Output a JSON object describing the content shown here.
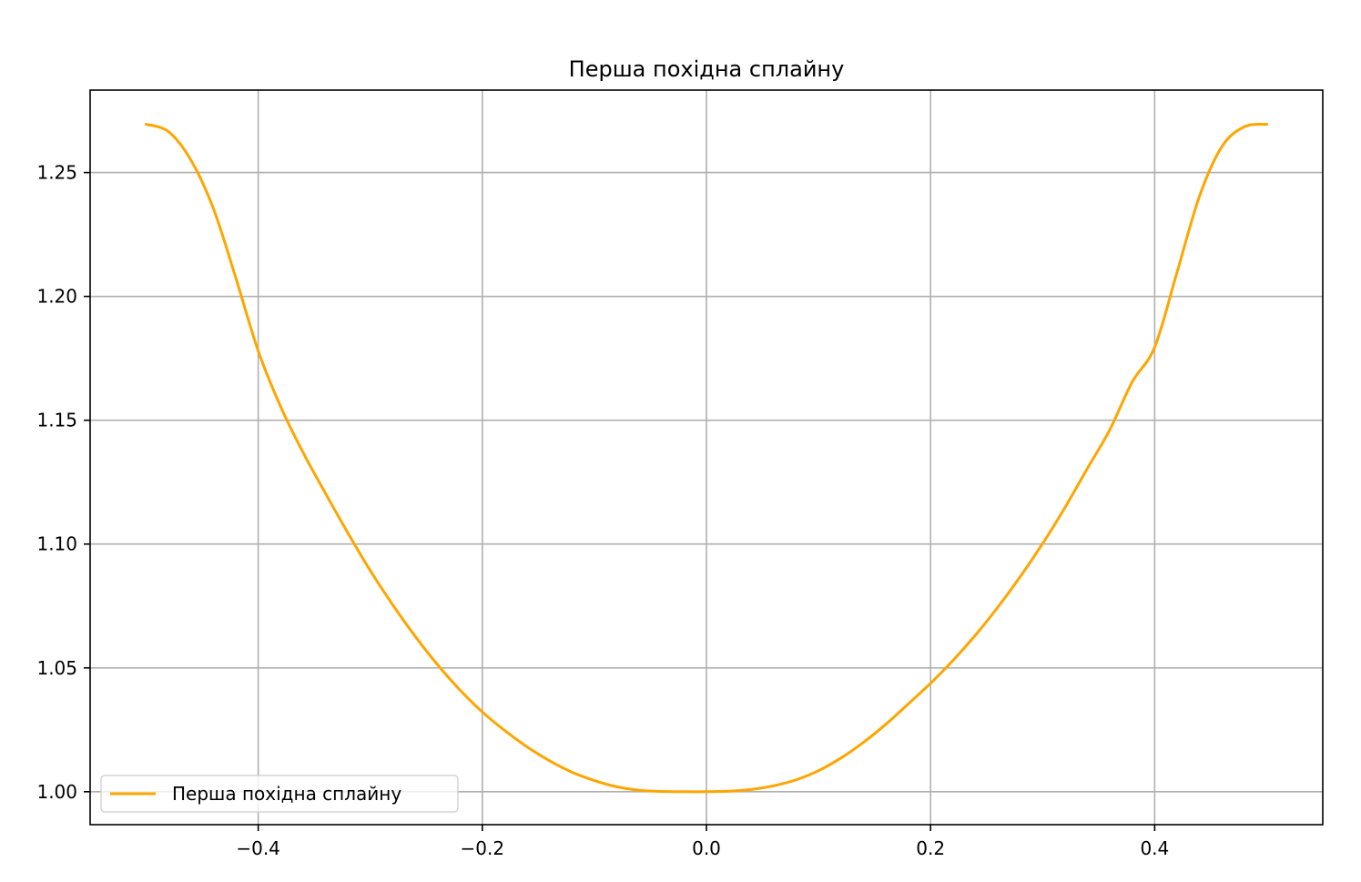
{
  "chart_data": {
    "type": "line",
    "title": "Перша похідна сплайну",
    "xlabel": "",
    "ylabel": "",
    "xlim": [
      -0.55,
      0.55
    ],
    "ylim": [
      0.9867,
      1.2833
    ],
    "x_ticks": [
      -0.4,
      -0.2,
      0.0,
      0.2,
      0.4
    ],
    "x_tick_labels": [
      "−0.4",
      "−0.2",
      "0.0",
      "0.2",
      "0.4"
    ],
    "y_ticks": [
      1.0,
      1.05,
      1.1,
      1.15,
      1.2,
      1.25
    ],
    "y_tick_labels": [
      "1.00",
      "1.05",
      "1.10",
      "1.15",
      "1.20",
      "1.25"
    ],
    "grid": true,
    "legend_position": "lower-left",
    "series": [
      {
        "name": "Перша похідна сплайну",
        "color": "#FFA500",
        "x": [
          -0.5,
          -0.48,
          -0.46,
          -0.44,
          -0.42,
          -0.4,
          -0.38,
          -0.36,
          -0.34,
          -0.32,
          -0.3,
          -0.28,
          -0.26,
          -0.24,
          -0.22,
          -0.2,
          -0.18,
          -0.16,
          -0.14,
          -0.12,
          -0.1,
          -0.08,
          -0.06,
          -0.04,
          -0.02,
          0.0,
          0.02,
          0.04,
          0.06,
          0.08,
          0.1,
          0.12,
          0.14,
          0.16,
          0.18,
          0.2,
          0.22,
          0.24,
          0.26,
          0.28,
          0.3,
          0.32,
          0.34,
          0.36,
          0.38,
          0.4,
          0.42,
          0.44,
          0.46,
          0.48,
          0.5
        ],
        "y": [
          1.2695,
          1.2665,
          1.255,
          1.2355,
          1.2075,
          1.178,
          1.1555,
          1.137,
          1.1205,
          1.1045,
          1.0893,
          1.0755,
          1.0628,
          1.0513,
          1.0411,
          1.0322,
          1.0247,
          1.0181,
          1.0125,
          1.0079,
          1.0045,
          1.002,
          1.0006,
          1.0001,
          1.0,
          1.0,
          1.0002,
          1.0009,
          1.0024,
          1.0048,
          1.0085,
          1.0136,
          1.0199,
          1.0272,
          1.0354,
          1.0438,
          1.053,
          1.0632,
          1.0745,
          1.0868,
          1.1002,
          1.1148,
          1.1306,
          1.1462,
          1.1655,
          1.1795,
          1.2098,
          1.2405,
          1.2605,
          1.2685,
          1.2695
        ]
      }
    ]
  }
}
